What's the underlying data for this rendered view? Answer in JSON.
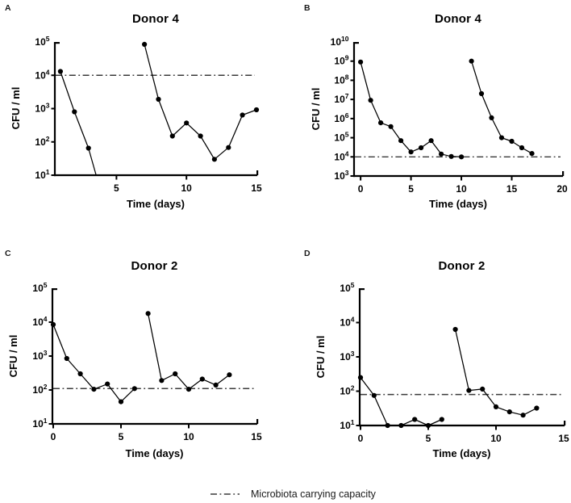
{
  "legend": {
    "label": "Microbiota carrying capacity"
  },
  "colors": {
    "axis": "#000000",
    "series_line": "#000000",
    "marker": "#000000",
    "carrying_capacity_line": "#3a3a3a"
  },
  "chart_data": [
    {
      "type": "line",
      "panel": "A",
      "title": "Donor 4",
      "xlabel": "Time (days)",
      "ylabel": "CFU / ml",
      "x_min": 0.6,
      "x_max": 15,
      "x_ticks": [
        5,
        10,
        15
      ],
      "y_scale": "log10",
      "y_exp_min": 1,
      "y_exp_max": 5,
      "carrying_capacity": 10000,
      "series": [
        {
          "name": "series_1",
          "x": [
            1,
            2,
            3
          ],
          "y": [
            13000,
            800,
            65
          ],
          "tail": [
            3.55,
            10
          ]
        },
        {
          "name": "series_2",
          "x": [
            7,
            8,
            9,
            10,
            11,
            12,
            13,
            14,
            15
          ],
          "y": [
            85000,
            1900,
            150,
            370,
            150,
            30,
            68,
            640,
            920
          ]
        }
      ]
    },
    {
      "type": "line",
      "panel": "B",
      "title": "Donor 4",
      "xlabel": "Time (days)",
      "ylabel": "CFU / ml",
      "x_min": -0.65,
      "x_max": 20,
      "x_ticks": [
        0,
        5,
        10,
        15,
        20
      ],
      "y_scale": "log10",
      "y_exp_min": 3,
      "y_exp_max": 10,
      "carrying_capacity": 10000,
      "series": [
        {
          "name": "series_1",
          "x": [
            0,
            1,
            2,
            3,
            4,
            5,
            6,
            7,
            8,
            9,
            10
          ],
          "y": [
            900000000,
            9000000,
            600000,
            380000,
            70000,
            18000,
            30000,
            70000,
            14000,
            10500,
            10000
          ]
        },
        {
          "name": "series_2",
          "x": [
            11,
            12,
            13,
            14,
            15,
            16,
            17
          ],
          "y": [
            1000000000,
            20000000,
            1100000,
            100000,
            65000,
            30000,
            15000
          ]
        }
      ]
    },
    {
      "type": "line",
      "panel": "C",
      "title": "Donor 2",
      "xlabel": "Time (days)",
      "ylabel": "CFU / ml",
      "x_min": -0.06,
      "x_max": 15,
      "x_ticks": [
        0,
        5,
        10,
        15
      ],
      "y_scale": "log10",
      "y_exp_min": 1,
      "y_exp_max": 5,
      "carrying_capacity": 110,
      "series": [
        {
          "name": "series_1",
          "x": [
            0,
            1,
            2,
            3,
            4,
            5,
            6
          ],
          "y": [
            8500,
            850,
            300,
            105,
            150,
            45,
            110
          ]
        },
        {
          "name": "series_2",
          "x": [
            7,
            8,
            9,
            10,
            11,
            12,
            13
          ],
          "y": [
            18000,
            190,
            300,
            105,
            210,
            140,
            280
          ]
        }
      ]
    },
    {
      "type": "line",
      "panel": "D",
      "title": "Donor 2",
      "xlabel": "Time (days)",
      "ylabel": "CFU / ml",
      "x_min": -0.06,
      "x_max": 15,
      "x_ticks": [
        0,
        5,
        10,
        15
      ],
      "y_scale": "log10",
      "y_exp_min": 1,
      "y_exp_max": 5,
      "carrying_capacity": 80,
      "series": [
        {
          "name": "series_1",
          "x": [
            0,
            1,
            2,
            3,
            4,
            5,
            6
          ],
          "y": [
            250,
            75,
            10,
            10,
            15,
            10,
            15
          ]
        },
        {
          "name": "series_2",
          "x": [
            7,
            8,
            9,
            10,
            11,
            12,
            13
          ],
          "y": [
            6300,
            105,
            115,
            35,
            25,
            20,
            32
          ]
        }
      ]
    }
  ]
}
